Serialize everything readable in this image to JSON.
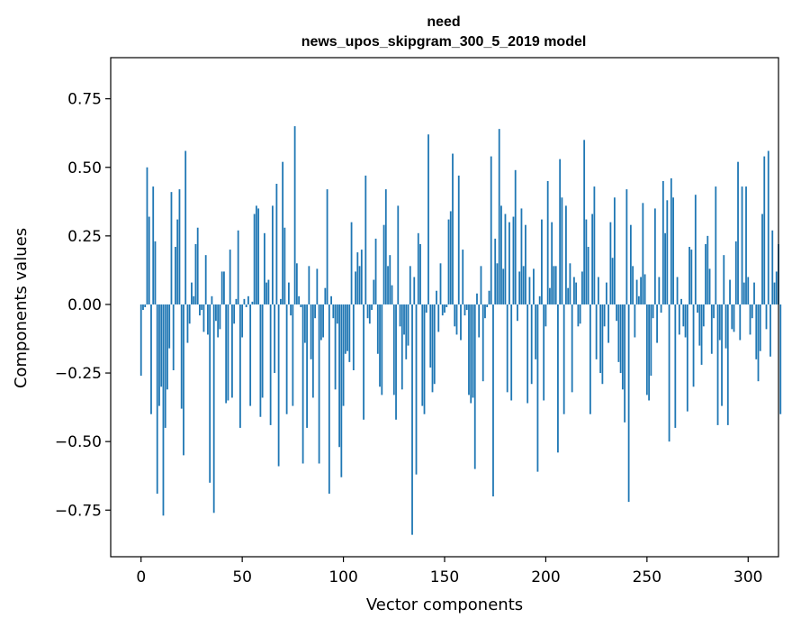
{
  "chart_data": {
    "type": "bar",
    "title": "need",
    "subtitle": "news_upos_skipgram_300_5_2019 model",
    "xlabel": "Vector components",
    "ylabel": "Components values",
    "xlim": [
      -15,
      315
    ],
    "ylim": [
      -0.92,
      0.9
    ],
    "xticks": [
      0,
      50,
      100,
      150,
      200,
      250,
      300
    ],
    "yticks": [
      -0.75,
      -0.5,
      -0.25,
      0.0,
      0.25,
      0.5,
      0.75
    ],
    "xtick_labels": [
      "0",
      "50",
      "100",
      "150",
      "200",
      "250",
      "300"
    ],
    "ytick_labels": [
      "−0.75",
      "−0.50",
      "−0.25",
      "0.00",
      "0.25",
      "0.50",
      "0.75"
    ],
    "bar_color": "#1f77b4",
    "values": [
      -0.26,
      -0.02,
      -0.01,
      0.5,
      0.32,
      -0.4,
      0.43,
      0.23,
      -0.69,
      -0.37,
      -0.3,
      -0.77,
      -0.45,
      -0.31,
      -0.16,
      0.41,
      -0.24,
      0.21,
      0.31,
      0.42,
      -0.38,
      -0.55,
      0.56,
      -0.14,
      -0.07,
      0.08,
      0.03,
      0.22,
      0.28,
      -0.04,
      -0.02,
      -0.1,
      0.18,
      -0.11,
      -0.65,
      0.03,
      -0.76,
      -0.06,
      -0.12,
      -0.09,
      0.12,
      0.12,
      -0.36,
      -0.35,
      0.2,
      -0.34,
      -0.07,
      0.02,
      0.27,
      -0.45,
      -0.12,
      0.02,
      -0.01,
      0.03,
      -0.37,
      0.01,
      0.33,
      0.36,
      0.35,
      -0.41,
      -0.34,
      0.26,
      0.08,
      0.09,
      -0.44,
      0.36,
      -0.25,
      0.44,
      -0.59,
      0.02,
      0.52,
      0.28,
      -0.4,
      0.08,
      -0.04,
      -0.37,
      0.65,
      0.15,
      0.03,
      -0.01,
      -0.58,
      -0.14,
      -0.45,
      0.14,
      -0.2,
      -0.34,
      -0.05,
      0.13,
      -0.58,
      -0.13,
      -0.12,
      0.06,
      0.42,
      -0.69,
      0.03,
      -0.05,
      -0.31,
      -0.07,
      -0.52,
      -0.63,
      -0.37,
      -0.18,
      -0.17,
      -0.21,
      0.3,
      -0.24,
      0.12,
      0.19,
      0.14,
      0.2,
      -0.42,
      0.47,
      -0.05,
      -0.07,
      -0.02,
      0.09,
      0.24,
      -0.18,
      -0.3,
      -0.33,
      0.29,
      0.42,
      0.14,
      0.18,
      0.07,
      -0.33,
      -0.42,
      0.36,
      -0.08,
      -0.31,
      -0.11,
      -0.2,
      -0.15,
      0.14,
      -0.84,
      0.1,
      -0.62,
      0.26,
      0.22,
      -0.37,
      -0.4,
      -0.03,
      0.62,
      -0.23,
      -0.32,
      -0.29,
      0.05,
      -0.1,
      0.15,
      -0.04,
      -0.03,
      -0.01,
      0.31,
      0.34,
      0.55,
      -0.08,
      -0.11,
      0.47,
      -0.13,
      0.2,
      -0.04,
      -0.02,
      -0.33,
      -0.36,
      -0.34,
      -0.6,
      0.04,
      -0.12,
      0.14,
      -0.28,
      -0.05,
      -0.01,
      0.05,
      0.54,
      -0.7,
      0.24,
      0.15,
      0.64,
      0.36,
      0.13,
      0.33,
      -0.32,
      0.3,
      -0.35,
      0.32,
      0.49,
      -0.06,
      0.12,
      0.35,
      0.14,
      0.29,
      -0.36,
      0.1,
      -0.29,
      0.13,
      -0.2,
      -0.61,
      0.03,
      0.31,
      -0.35,
      -0.08,
      0.45,
      0.06,
      0.3,
      0.14,
      0.14,
      -0.54,
      0.53,
      0.39,
      -0.4,
      0.36,
      0.06,
      0.15,
      -0.32,
      0.1,
      0.08,
      -0.08,
      -0.07,
      0.12,
      0.6,
      0.31,
      0.21,
      -0.4,
      0.33,
      0.43,
      -0.2,
      0.1,
      -0.25,
      -0.29,
      -0.08,
      0.08,
      -0.14,
      0.3,
      0.17,
      0.39,
      -0.06,
      -0.21,
      -0.25,
      -0.31,
      -0.43,
      0.42,
      -0.72,
      0.29,
      0.14,
      -0.12,
      0.09,
      0.03,
      0.1,
      0.37,
      0.11,
      -0.33,
      -0.35,
      -0.26,
      -0.05,
      0.35,
      -0.14,
      0.1,
      -0.03,
      0.45,
      0.26,
      0.38,
      -0.5,
      0.46,
      0.39,
      -0.45,
      0.1,
      -0.11,
      0.02,
      -0.08,
      -0.12,
      -0.39,
      0.21,
      0.2,
      -0.3,
      0.4,
      -0.03,
      -0.15,
      -0.22,
      -0.08,
      0.22,
      0.25,
      0.13,
      -0.18,
      -0.05,
      0.43,
      -0.44,
      -0.13,
      -0.37,
      0.18,
      -0.16,
      -0.44,
      0.09,
      -0.09,
      -0.1,
      0.23,
      0.52,
      -0.13,
      0.43,
      0.08,
      0.43,
      0.1,
      -0.11,
      -0.05,
      0.08,
      -0.2,
      -0.28,
      -0.17,
      0.33,
      0.54,
      -0.09,
      0.56,
      -0.19,
      0.27,
      0.08,
      0.12,
      0.22,
      -0.4
    ]
  }
}
